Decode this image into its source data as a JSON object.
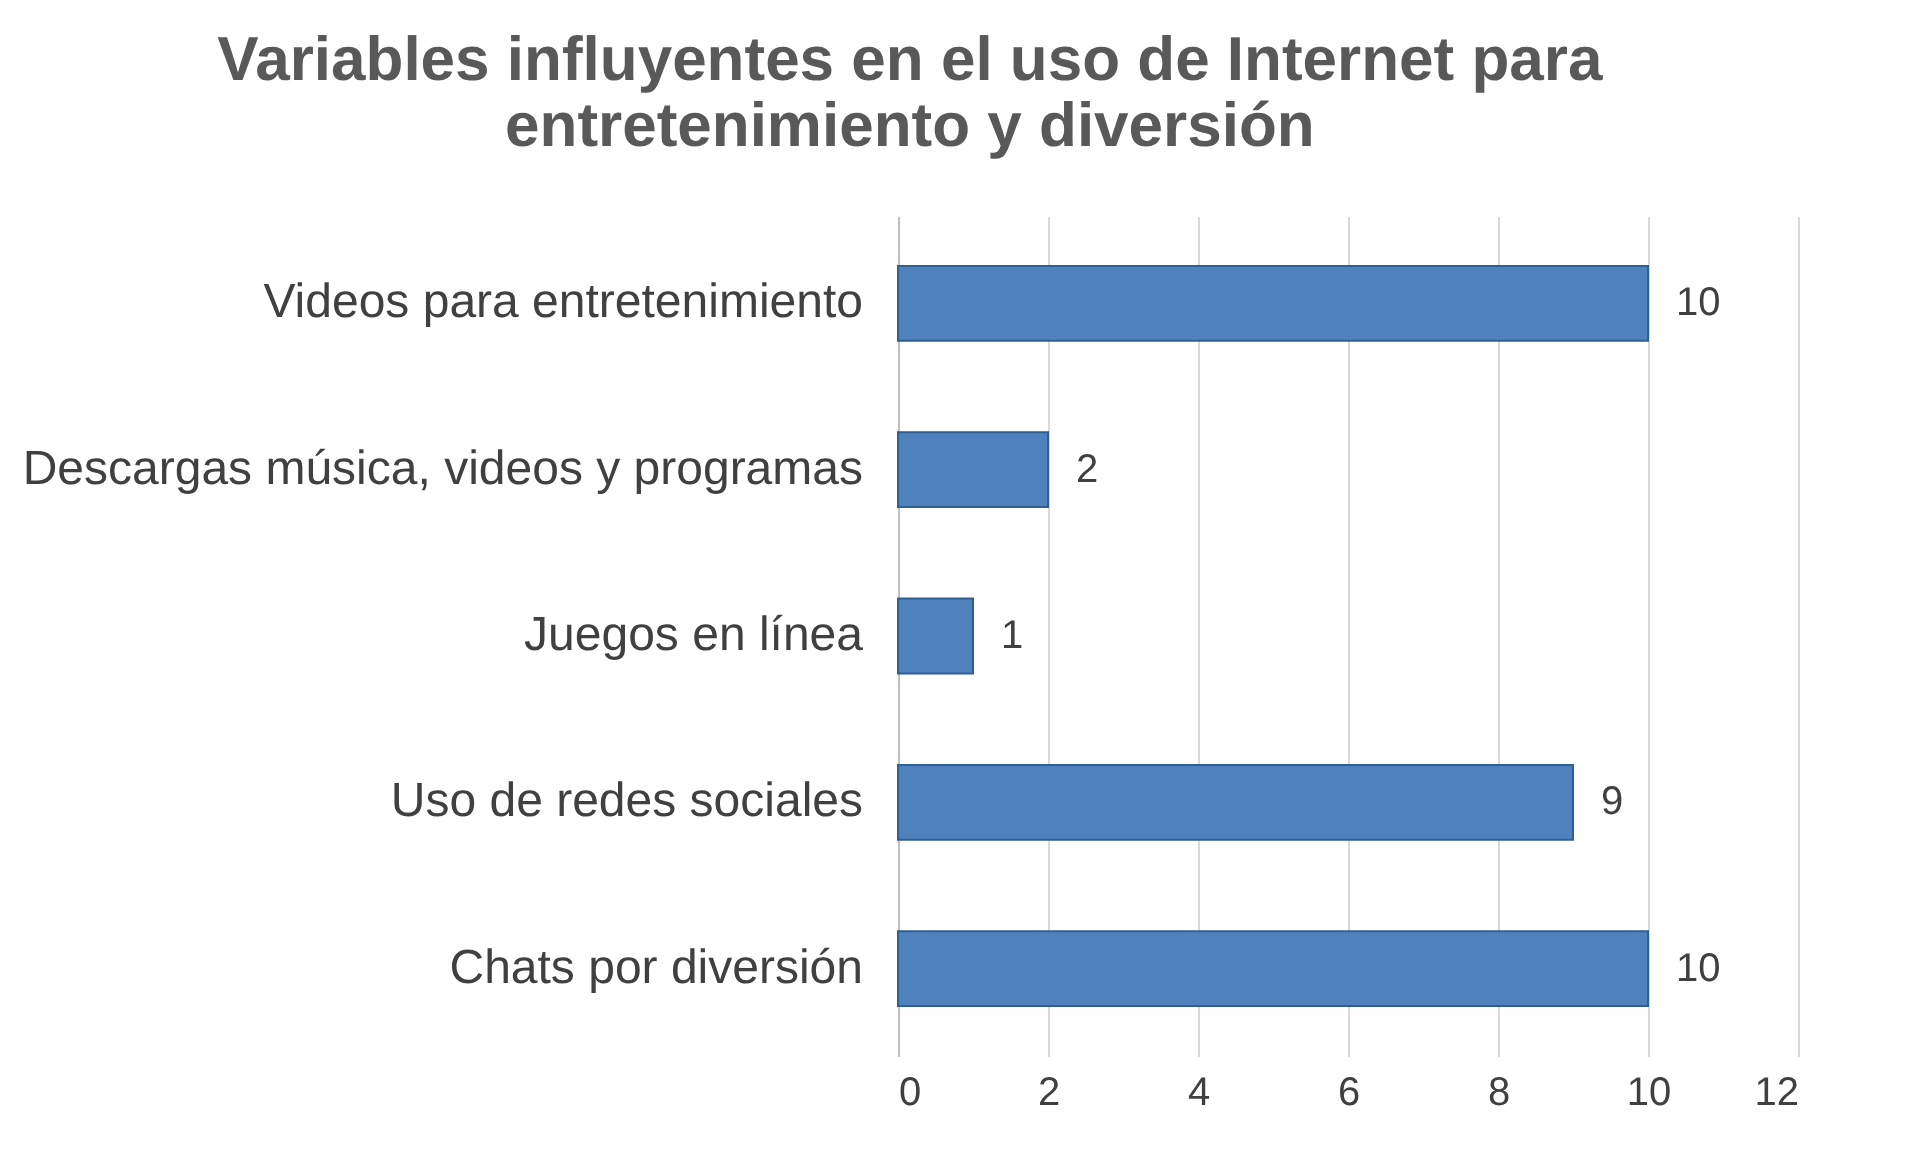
{
  "chart_data": {
    "type": "bar",
    "orientation": "horizontal",
    "title": "Variables influyentes en el uso de Internet para entretenimiento y diversión",
    "categories": [
      "Videos para entretenimiento",
      "Descargas música, videos y programas",
      "Juegos en línea",
      "Uso de redes sociales",
      "Chats por diversión"
    ],
    "values": [
      10,
      2,
      1,
      9,
      10
    ],
    "color": "#4f81bd",
    "xlim": [
      0,
      12
    ],
    "xticks": [
      0,
      2,
      4,
      6,
      8,
      10,
      12
    ],
    "grid": "x",
    "data_labels": true
  }
}
